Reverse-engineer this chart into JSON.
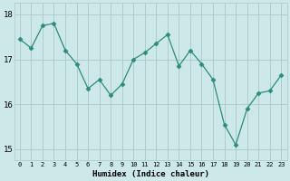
{
  "x": [
    0,
    1,
    2,
    3,
    4,
    5,
    6,
    7,
    8,
    9,
    10,
    11,
    12,
    13,
    14,
    15,
    16,
    17,
    18,
    19,
    20,
    21,
    22,
    23
  ],
  "y": [
    17.45,
    17.25,
    17.75,
    17.8,
    17.2,
    16.9,
    16.35,
    16.55,
    16.2,
    16.45,
    17.0,
    17.15,
    17.35,
    17.55,
    16.85,
    17.2,
    16.9,
    16.55,
    15.55,
    15.1,
    15.9,
    16.25,
    16.3,
    16.65
  ],
  "line_color": "#2e8b7a",
  "marker": "D",
  "marker_size": 2.5,
  "bg_color": "#cce8e8",
  "grid_color": "#aac8c8",
  "xlabel": "Humidex (Indice chaleur)",
  "ylim": [
    14.75,
    18.25
  ],
  "yticks": [
    15,
    16,
    17,
    18
  ],
  "figsize": [
    3.2,
    2.0
  ],
  "dpi": 100
}
